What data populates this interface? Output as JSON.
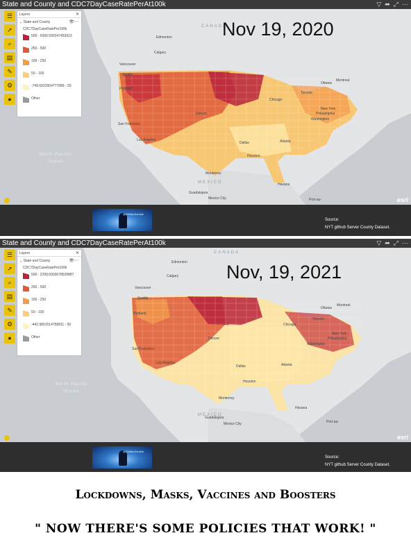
{
  "app": {
    "title": "State and County and CDC7DayCaseRatePerAt100k"
  },
  "panels": [
    {
      "date_label": "Nov 19, 2020",
      "layers_panel": {
        "header": "Layers",
        "layer_name": "State and County",
        "field": "CDC7DayCaseRatePer100k",
        "legend": [
          {
            "label": "500 - 5000.500247453913",
            "color": "#b9233b"
          },
          {
            "label": "250 - 500",
            "color": "#de5a39"
          },
          {
            "label": "100 - 250",
            "color": "#f39a4b"
          },
          {
            "label": "50 - 100",
            "color": "#fbd079"
          },
          {
            "label": "-749.6922904777689 - 50",
            "color": "#fdf3c0"
          },
          {
            "label": "Other",
            "color": "#9a9a9a"
          }
        ]
      },
      "footer": {
        "source_label": "Source:",
        "source_text": "NYT github Server County Dataset.",
        "thumb_label": "@AWakeZombie"
      }
    },
    {
      "date_label": "Nov, 19, 2021",
      "layers_panel": {
        "header": "Layers",
        "layer_name": "State and County",
        "field": "CDC7DayCaseRatePer100k",
        "legend": [
          {
            "label": "500 - 2299.0003678528887",
            "color": "#b9233b"
          },
          {
            "label": "250 - 500",
            "color": "#de5a39"
          },
          {
            "label": "100 - 250",
            "color": "#f39a4b"
          },
          {
            "label": "50 - 100",
            "color": "#fbd079"
          },
          {
            "label": "-442.9801514758811 - 50",
            "color": "#fdf3c0"
          },
          {
            "label": "Other",
            "color": "#9a9a9a"
          }
        ]
      },
      "footer": {
        "source_label": "Source:",
        "source_text": "NYT github Server County Dataset.",
        "thumb_label": "@AWakeZombie"
      }
    }
  ],
  "map_labels": {
    "region_canada": "CANADA",
    "region_mexico": "MEXICO",
    "ocean_north_pacific": "North Pacific Ocean",
    "cities": [
      "Edmonton",
      "Calgary",
      "Vancouver",
      "Seattle",
      "Portland",
      "San Francisco",
      "Los Angeles",
      "Denver",
      "Chicago",
      "Toronto",
      "Ottawa",
      "Montreal",
      "New York",
      "Philadelphia",
      "Washington",
      "Atlanta",
      "Dallas",
      "Houston",
      "Monterrey",
      "Guadalajara",
      "Mexico City",
      "Havana",
      "Port-au-"
    ],
    "esri": "esri"
  },
  "colors": {
    "high": "#b9233b",
    "mid_high": "#de5a39",
    "mid": "#f39a4b",
    "low": "#fbd079",
    "lowest": "#fdf3c0",
    "tool_yellow": "#e8c20b"
  },
  "caption": {
    "line1": "Lockdowns, Masks, Vaccines and Boosters",
    "line2": "\" NOW THERE'S SOME POLICIES THAT WORK! \""
  }
}
